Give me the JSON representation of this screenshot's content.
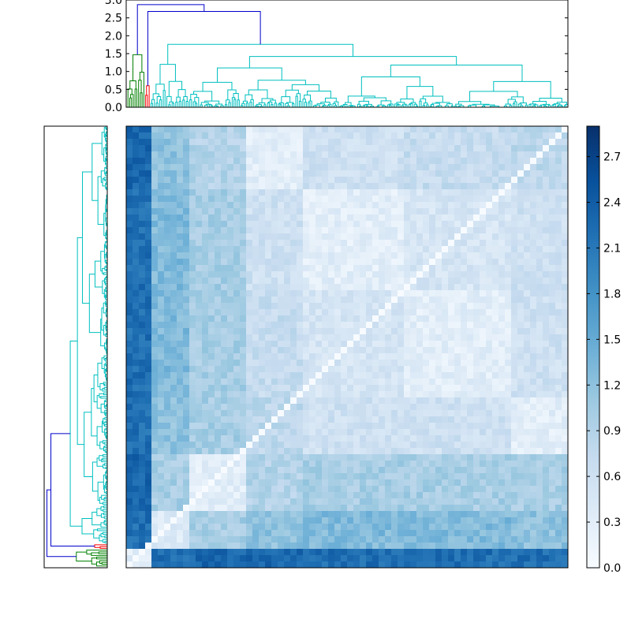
{
  "chart_data": [
    {
      "type": "dendrogram",
      "name": "top-dendrogram",
      "orientation": "top",
      "ylim": [
        0,
        3.0
      ],
      "yticks": [
        "0.0",
        "0.5",
        "1.0",
        "1.5",
        "2.0",
        "2.5",
        "3.0"
      ],
      "link_colors": {
        "above_threshold": "#0000cc",
        "cluster_1": "#008000",
        "cluster_2": "#ff0000",
        "cluster_3": "#00bfbf"
      },
      "major_merges": [
        {
          "height": 2.87,
          "color": "#0000cc"
        },
        {
          "height": 2.68,
          "color": "#0000cc"
        },
        {
          "height": 1.76,
          "color": "#00bfbf"
        },
        {
          "height": 1.42,
          "color": "#00bfbf"
        },
        {
          "height": 1.47,
          "color": "#008000"
        },
        {
          "height": 0.6,
          "color": "#ff0000"
        }
      ]
    },
    {
      "type": "dendrogram",
      "name": "left-dendrogram",
      "orientation": "left",
      "link_colors": {
        "above_threshold": "#0000cc",
        "cluster_1": "#008000",
        "cluster_2": "#ff0000",
        "cluster_3": "#00bfbf"
      }
    },
    {
      "type": "heatmap",
      "name": "distance-matrix",
      "colormap": "Blues",
      "value_range": [
        0.0,
        2.9
      ],
      "colorbar_ticks": [
        "0.0",
        "0.3",
        "0.6",
        "0.9",
        "1.2",
        "1.5",
        "1.8",
        "2.1",
        "2.4",
        "2.7"
      ],
      "diagonal_value": 0.0
    }
  ],
  "colors": {
    "axis": "#000000",
    "blues_low": "#f7fbff",
    "blues_high": "#08306b"
  }
}
